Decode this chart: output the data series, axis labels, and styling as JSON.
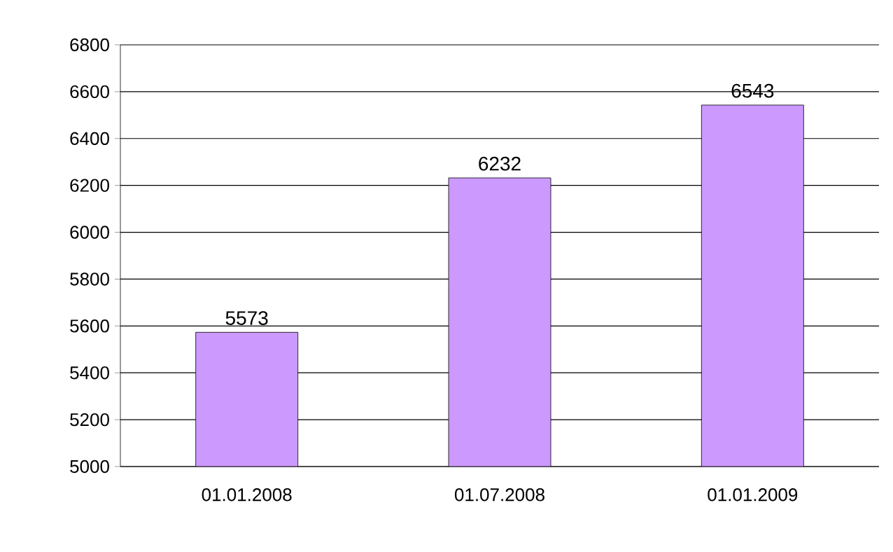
{
  "chart_data": {
    "type": "bar",
    "categories": [
      "01.01.2008",
      "01.07.2008",
      "01.01.2009"
    ],
    "values": [
      5573,
      6232,
      6543
    ],
    "color": "#cc99ff",
    "ylim": [
      5000,
      6800
    ],
    "yticks": [
      5000,
      5200,
      5400,
      5600,
      5800,
      6000,
      6200,
      6400,
      6600,
      6800
    ],
    "grid": "y",
    "data_labels": true
  }
}
